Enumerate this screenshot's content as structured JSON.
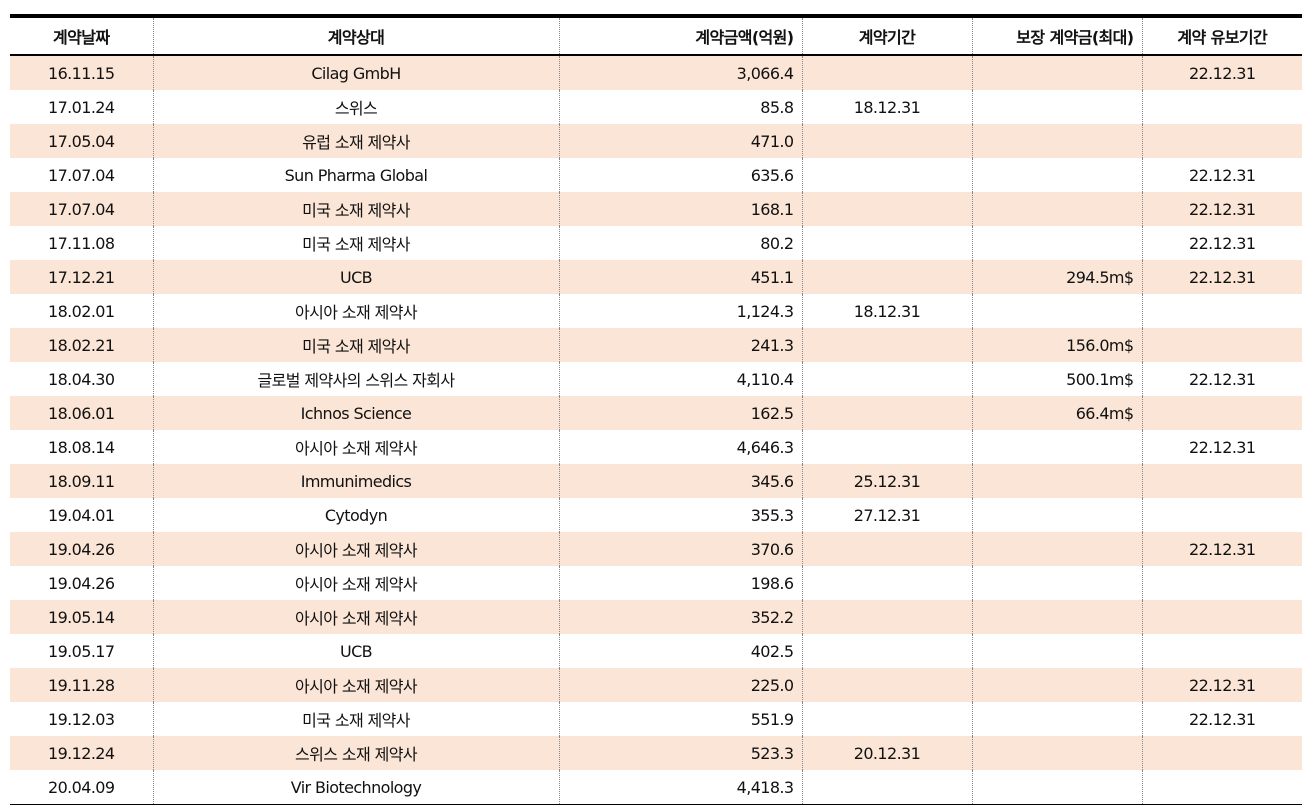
{
  "headers": {
    "date": "계약날짜",
    "partner": "계약상대",
    "amount": "계약금액(억원)",
    "period": "계약기간",
    "guarantee": "보장 계약금(최대)",
    "hold": "계약 유보기간"
  },
  "rows": [
    {
      "date": "16.11.15",
      "partner": "Cilag GmbH",
      "amount": "3,066.4",
      "period": "",
      "guarantee": "",
      "hold": "22.12.31"
    },
    {
      "date": "17.01.24",
      "partner": "스위스",
      "amount": "85.8",
      "period": "18.12.31",
      "guarantee": "",
      "hold": ""
    },
    {
      "date": "17.05.04",
      "partner": "유럽 소재 제약사",
      "amount": "471.0",
      "period": "",
      "guarantee": "",
      "hold": ""
    },
    {
      "date": "17.07.04",
      "partner": "Sun Pharma Global",
      "amount": "635.6",
      "period": "",
      "guarantee": "",
      "hold": "22.12.31"
    },
    {
      "date": "17.07.04",
      "partner": "미국 소재 제약사",
      "amount": "168.1",
      "period": "",
      "guarantee": "",
      "hold": "22.12.31"
    },
    {
      "date": "17.11.08",
      "partner": "미국 소재 제약사",
      "amount": "80.2",
      "period": "",
      "guarantee": "",
      "hold": "22.12.31"
    },
    {
      "date": "17.12.21",
      "partner": "UCB",
      "amount": "451.1",
      "period": "",
      "guarantee": "294.5m$",
      "hold": "22.12.31"
    },
    {
      "date": "18.02.01",
      "partner": "아시아 소재 제약사",
      "amount": "1,124.3",
      "period": "18.12.31",
      "guarantee": "",
      "hold": ""
    },
    {
      "date": "18.02.21",
      "partner": "미국 소재 제약사",
      "amount": "241.3",
      "period": "",
      "guarantee": "156.0m$",
      "hold": ""
    },
    {
      "date": "18.04.30",
      "partner": "글로벌 제약사의 스위스 자회사",
      "amount": "4,110.4",
      "period": "",
      "guarantee": "500.1m$",
      "hold": "22.12.31"
    },
    {
      "date": "18.06.01",
      "partner": "Ichnos Science",
      "amount": "162.5",
      "period": "",
      "guarantee": "66.4m$",
      "hold": ""
    },
    {
      "date": "18.08.14",
      "partner": "아시아 소재 제약사",
      "amount": "4,646.3",
      "period": "",
      "guarantee": "",
      "hold": "22.12.31"
    },
    {
      "date": "18.09.11",
      "partner": "Immunimedics",
      "amount": "345.6",
      "period": "25.12.31",
      "guarantee": "",
      "hold": ""
    },
    {
      "date": "19.04.01",
      "partner": "Cytodyn",
      "amount": "355.3",
      "period": "27.12.31",
      "guarantee": "",
      "hold": ""
    },
    {
      "date": "19.04.26",
      "partner": "아시아 소재 제약사",
      "amount": "370.6",
      "period": "",
      "guarantee": "",
      "hold": "22.12.31"
    },
    {
      "date": "19.04.26",
      "partner": "아시아 소재 제약사",
      "amount": "198.6",
      "period": "",
      "guarantee": "",
      "hold": ""
    },
    {
      "date": "19.05.14",
      "partner": "아시아 소재 제약사",
      "amount": "352.2",
      "period": "",
      "guarantee": "",
      "hold": ""
    },
    {
      "date": "19.05.17",
      "partner": "UCB",
      "amount": "402.5",
      "period": "",
      "guarantee": "",
      "hold": ""
    },
    {
      "date": "19.11.28",
      "partner": "아시아 소재 제약사",
      "amount": "225.0",
      "period": "",
      "guarantee": "",
      "hold": "22.12.31"
    },
    {
      "date": "19.12.03",
      "partner": "미국 소재 제약사",
      "amount": "551.9",
      "period": "",
      "guarantee": "",
      "hold": "22.12.31"
    },
    {
      "date": "19.12.24",
      "partner": "스위스 소재 제약사",
      "amount": "523.3",
      "period": "20.12.31",
      "guarantee": "",
      "hold": ""
    },
    {
      "date": "20.04.09",
      "partner": "Vir Biotechnology",
      "amount": "4,418.3",
      "period": "",
      "guarantee": "",
      "hold": ""
    }
  ],
  "colors": {
    "row_shade": "#fbe5d6",
    "rule": "#000000"
  }
}
